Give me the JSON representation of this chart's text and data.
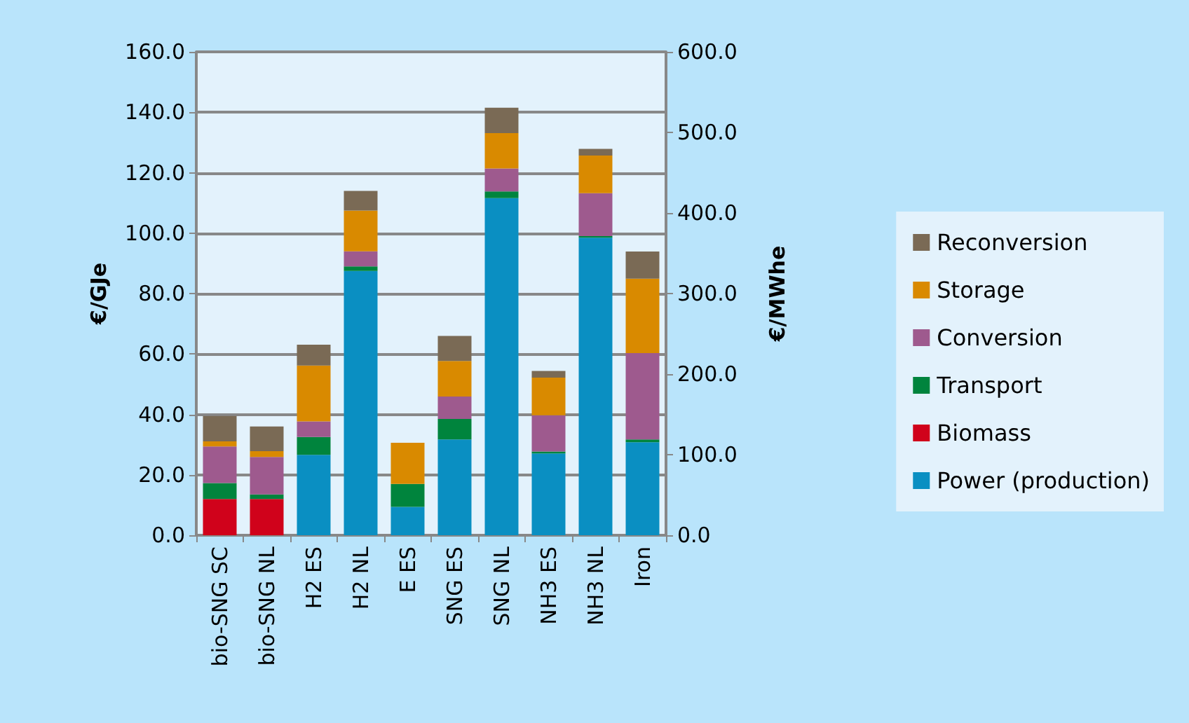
{
  "chart_data": {
    "type": "bar",
    "stacked": true,
    "ylabel": "€/GJe",
    "y2label": "€/MWhe",
    "categories": [
      "bio-SNG SC",
      "bio-SNG NL",
      "H2 ES",
      "H2 NL",
      "E ES",
      "SNG ES",
      "SNG NL",
      "NH3 ES",
      "NH3 NL",
      "Iron"
    ],
    "series": [
      {
        "name": "Power (production)",
        "color": "#0a8fc2",
        "values": [
          null,
          null,
          26.6,
          87.5,
          9.4,
          31.7,
          111.6,
          27.1,
          98.5,
          30.8
        ]
      },
      {
        "name": "Biomass",
        "color": "#d0021b",
        "values": [
          12,
          12,
          null,
          null,
          null,
          null,
          null,
          null,
          null,
          null
        ]
      },
      {
        "name": "Transport",
        "color": "#00843d",
        "values": [
          5.3,
          1.5,
          5.9,
          1.5,
          7.6,
          6.8,
          2.2,
          0.6,
          0.5,
          0.9
        ]
      },
      {
        "name": "Conversion",
        "color": "#9e5a8e",
        "values": [
          12.1,
          12.4,
          5.2,
          5,
          null,
          7.4,
          7.6,
          12,
          14.2,
          28.6
        ]
      },
      {
        "name": "Storage",
        "color": "#d98a00",
        "values": [
          1.7,
          1.9,
          18.5,
          13.5,
          13.6,
          11.8,
          11.7,
          12.5,
          12.5,
          24.6
        ]
      },
      {
        "name": "Reconversion",
        "color": "#7a6a55",
        "values": [
          8.4,
          8.2,
          6.9,
          6.5,
          null,
          8.3,
          8.4,
          2.2,
          2.2,
          9
        ]
      }
    ],
    "ylim": [
      0,
      160
    ],
    "yticks": [
      {
        "value": 0,
        "label": "0.0"
      },
      {
        "value": 20,
        "label": "20.0"
      },
      {
        "value": 40,
        "label": "40.0"
      },
      {
        "value": 60,
        "label": "60.0"
      },
      {
        "value": 80,
        "label": "80.0"
      },
      {
        "value": 100,
        "label": "100.0"
      },
      {
        "value": 120,
        "label": "120.0"
      },
      {
        "value": 140,
        "label": "140.0"
      },
      {
        "value": 160,
        "label": "160.0"
      }
    ],
    "y2lim": [
      0,
      600
    ],
    "y2ticks": [
      {
        "value": 0,
        "label": "0.0"
      },
      {
        "value": 100,
        "label": "100.0"
      },
      {
        "value": 200,
        "label": "200.0"
      },
      {
        "value": 300,
        "label": "300.0"
      },
      {
        "value": 400,
        "label": "400.0"
      },
      {
        "value": 500,
        "label": "500.0"
      },
      {
        "value": 600,
        "label": "600.0"
      }
    ],
    "grid": "y",
    "legend": "right"
  }
}
